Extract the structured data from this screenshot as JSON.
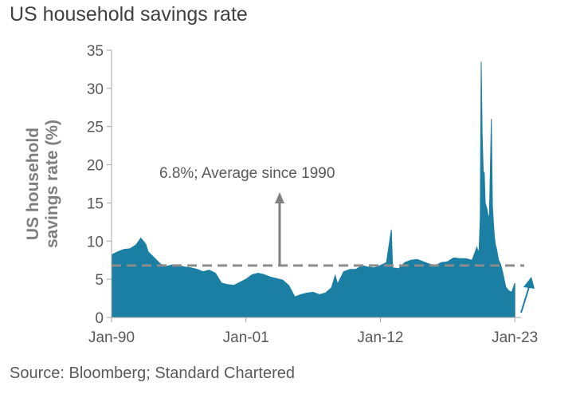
{
  "title": "US household savings rate",
  "source": "Source: Bloomberg; Standard Chartered",
  "colors": {
    "bars": "#1b7ea3",
    "axis": "#a6a6a6",
    "average": "#8c8c8c",
    "arrow_avg": "#7f7f7f",
    "arrow_latest": "#1b7ea3",
    "text": "#595959"
  },
  "chart_data": {
    "type": "area",
    "title": "US household savings rate",
    "ylabel_lines": [
      "US household",
      "savings rate (%)"
    ],
    "xlabel": "",
    "ylim": [
      0,
      35
    ],
    "yticks": [
      0,
      5,
      10,
      15,
      20,
      25,
      30,
      35
    ],
    "xlim": [
      1990.0,
      2023.25
    ],
    "xticks": [
      {
        "label": "Jan-90",
        "value": 1990.0
      },
      {
        "label": "Jan-01",
        "value": 2001.0
      },
      {
        "label": "Jan-12",
        "value": 2012.0
      },
      {
        "label": "Jan-23",
        "value": 2023.0
      }
    ],
    "series": [
      {
        "name": "US household savings rate",
        "x": [
          1990.0,
          1990.5,
          1991.0,
          1991.5,
          1992.0,
          1992.4,
          1992.8,
          1993.0,
          1993.5,
          1994.0,
          1994.5,
          1995.0,
          1995.5,
          1996.0,
          1996.5,
          1997.0,
          1997.5,
          1998.0,
          1998.5,
          1999.0,
          1999.5,
          2000.0,
          2000.5,
          2001.0,
          2001.5,
          2002.0,
          2002.5,
          2003.0,
          2003.5,
          2004.0,
          2004.5,
          2005.0,
          2005.5,
          2006.0,
          2006.5,
          2007.0,
          2007.5,
          2008.0,
          2008.3,
          2008.5,
          2009.0,
          2009.5,
          2010.0,
          2010.5,
          2011.0,
          2011.5,
          2012.0,
          2012.5,
          2012.9,
          2013.0,
          2013.5,
          2014.0,
          2014.5,
          2015.0,
          2015.5,
          2016.0,
          2016.5,
          2017.0,
          2017.5,
          2018.0,
          2018.5,
          2019.0,
          2019.5,
          2019.9,
          2020.0,
          2020.08,
          2020.17,
          2020.25,
          2020.33,
          2020.42,
          2020.5,
          2020.58,
          2020.67,
          2020.75,
          2020.83,
          2020.92,
          2021.0,
          2021.08,
          2021.17,
          2021.25,
          2021.33,
          2021.42,
          2021.5,
          2021.67,
          2021.83,
          2022.0,
          2022.25,
          2022.5,
          2022.75,
          2023.0
        ],
        "values": [
          8.2,
          8.6,
          8.9,
          9.0,
          9.5,
          10.4,
          9.6,
          8.6,
          7.8,
          7.0,
          6.7,
          6.9,
          6.8,
          6.6,
          6.5,
          6.3,
          6.0,
          6.2,
          5.8,
          4.5,
          4.3,
          4.2,
          4.6,
          5.0,
          5.6,
          5.8,
          5.6,
          5.3,
          5.1,
          4.9,
          4.2,
          2.7,
          3.0,
          3.2,
          3.3,
          3.0,
          3.2,
          3.9,
          5.5,
          4.4,
          6.0,
          6.3,
          6.3,
          6.8,
          6.6,
          6.5,
          6.8,
          7.2,
          11.5,
          6.5,
          6.4,
          7.2,
          7.5,
          7.6,
          7.3,
          7.0,
          6.8,
          7.2,
          7.3,
          7.8,
          7.7,
          7.7,
          7.5,
          9.2,
          8.5,
          9.0,
          13.0,
          33.5,
          24.0,
          19.0,
          19.0,
          15.0,
          14.5,
          14.0,
          13.0,
          13.5,
          19.5,
          26.0,
          14.5,
          12.5,
          10.5,
          9.5,
          9.0,
          7.5,
          7.0,
          6.0,
          4.0,
          3.5,
          3.3,
          4.5
        ]
      }
    ],
    "average": {
      "value": 6.8,
      "label": "6.8%; Average  since 1990"
    },
    "annotations": [
      {
        "text": "6.8%; Average  since 1990",
        "arrow": "up-to-average"
      },
      {
        "text": "",
        "arrow": "latest-rising"
      }
    ]
  }
}
